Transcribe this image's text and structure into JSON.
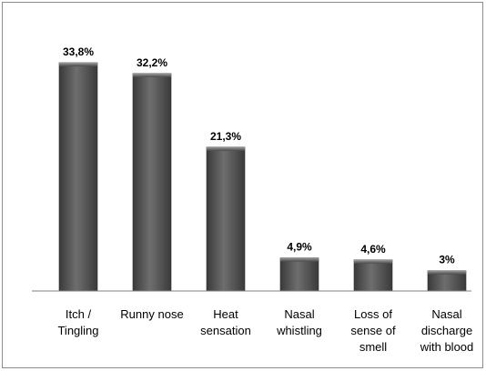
{
  "chart_data": {
    "type": "bar",
    "title": "",
    "xlabel": "",
    "ylabel": "",
    "grid": false,
    "legend": "none",
    "ylim": [
      0,
      35
    ],
    "categories": [
      [
        "Itch /",
        "Tingling"
      ],
      [
        "Runny nose"
      ],
      [
        "Heat",
        "sensation"
      ],
      [
        "Nasal",
        "whistling"
      ],
      [
        "Loss of",
        "sense of",
        "smell"
      ],
      [
        "Nasal",
        "discharge",
        "with blood"
      ]
    ],
    "values": [
      33.8,
      32.2,
      21.3,
      4.9,
      4.6,
      3
    ],
    "value_labels": [
      "33,8%",
      "32,2%",
      "21,3%",
      "4,9%",
      "4,6%",
      "3%"
    ],
    "colors": {
      "bar_dark": "#3a3a3a",
      "bar_mid": "#5a5a5a",
      "bar_light": "#6e6e6e",
      "axis": "#808080"
    }
  }
}
